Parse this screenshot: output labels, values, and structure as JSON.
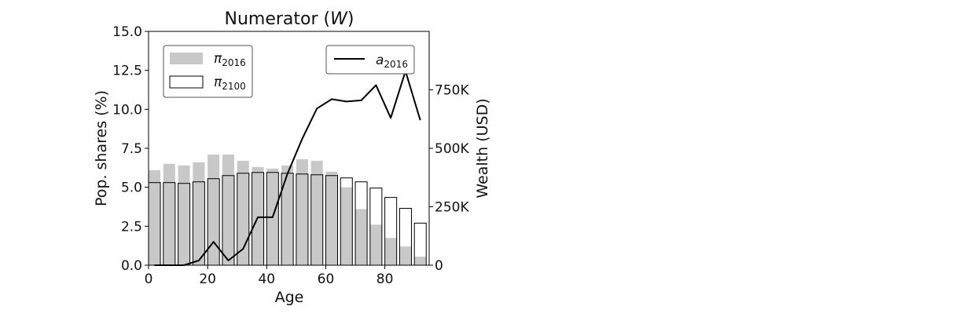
{
  "chart_data": {
    "type": "bar",
    "title": "Numerator (W)",
    "title_main": "Numerator (",
    "title_var": "W",
    "title_close": ")",
    "xlabel": "Age",
    "ylabel_left": "Pop. shares (%)",
    "ylabel_right": "Wealth (USD)",
    "xlim": [
      0,
      95
    ],
    "ylim_left": [
      0,
      15
    ],
    "ylim_right": [
      0,
      1000000
    ],
    "x_ticks": [
      "0",
      "20",
      "40",
      "60",
      "80"
    ],
    "y_left_ticks": [
      "0.0",
      "2.5",
      "5.0",
      "7.5",
      "10.0",
      "12.5",
      "15.0"
    ],
    "y_right_ticks": [
      "0",
      "250K",
      "500K",
      "750K"
    ],
    "ages": [
      2,
      7,
      12,
      17,
      22,
      27,
      32,
      37,
      42,
      47,
      52,
      57,
      62,
      67,
      72,
      77,
      82,
      87,
      92
    ],
    "series": [
      {
        "key": "pi2016",
        "name": "π2016",
        "symbol": "π",
        "subscript": "2016",
        "style": "filled-gray",
        "values": [
          6.1,
          6.5,
          6.4,
          6.6,
          7.1,
          7.1,
          6.7,
          6.3,
          6.2,
          6.4,
          6.8,
          6.7,
          6.0,
          5.0,
          3.6,
          2.6,
          1.75,
          1.2,
          0.55
        ]
      },
      {
        "key": "pi2100",
        "name": "π2100",
        "symbol": "π",
        "subscript": "2100",
        "style": "outline",
        "values": [
          5.3,
          5.3,
          5.25,
          5.35,
          5.55,
          5.75,
          5.9,
          5.95,
          5.95,
          5.9,
          5.85,
          5.8,
          5.75,
          5.6,
          5.35,
          4.95,
          4.35,
          3.65,
          2.7
        ]
      },
      {
        "key": "a2016",
        "name": "a2016",
        "symbol": "a",
        "subscript": "2016",
        "style": "line",
        "axis": "right",
        "values": [
          0,
          0,
          0,
          20000,
          100000,
          20000,
          70000,
          205000,
          205000,
          390000,
          540000,
          670000,
          710000,
          700000,
          705000,
          770000,
          630000,
          830000,
          620000
        ]
      }
    ],
    "legend_left_placement": "upper-left",
    "legend_right_placement": "upper-right",
    "grid": false,
    "colors": {
      "bar_fill": "#c8c8c8",
      "bar_outline": "#000000",
      "line": "#000000"
    }
  }
}
